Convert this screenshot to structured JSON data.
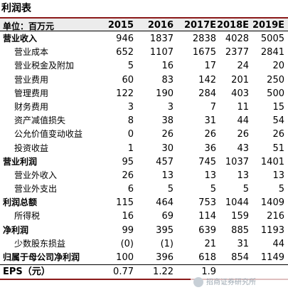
{
  "title": "利润表",
  "header": {
    "unit_label": "单位：百万元",
    "columns": [
      "2015",
      "2016",
      "2017E",
      "2018E",
      "2019E"
    ]
  },
  "rows": [
    {
      "label": "营业收入",
      "values": [
        "946",
        "1837",
        "2838",
        "4028",
        "5005"
      ],
      "style": "bold"
    },
    {
      "label": "营业成本",
      "values": [
        "652",
        "1107",
        "1675",
        "2377",
        "2841"
      ],
      "style": "indent"
    },
    {
      "label": "营业税金及附加",
      "values": [
        "5",
        "16",
        "17",
        "24",
        "20"
      ],
      "style": "indent"
    },
    {
      "label": "营业费用",
      "values": [
        "60",
        "83",
        "142",
        "201",
        "250"
      ],
      "style": "indent"
    },
    {
      "label": "管理费用",
      "values": [
        "122",
        "190",
        "284",
        "403",
        "500"
      ],
      "style": "indent"
    },
    {
      "label": "财务费用",
      "values": [
        "3",
        "3",
        "7",
        "11",
        "15"
      ],
      "style": "indent"
    },
    {
      "label": "资产减值损失",
      "values": [
        "8",
        "38",
        "31",
        "44",
        "54"
      ],
      "style": "indent"
    },
    {
      "label": "公允价值变动收益",
      "values": [
        "0",
        "26",
        "26",
        "26",
        "26"
      ],
      "style": "indent"
    },
    {
      "label": "投资收益",
      "values": [
        "1",
        "30",
        "36",
        "43",
        "51"
      ],
      "style": "indent"
    },
    {
      "label": "营业利润",
      "values": [
        "95",
        "457",
        "745",
        "1037",
        "1401"
      ],
      "style": "bold"
    },
    {
      "label": "营业外收入",
      "values": [
        "26",
        "13",
        "13",
        "13",
        "13"
      ],
      "style": "indent"
    },
    {
      "label": "营业外支出",
      "values": [
        "6",
        "5",
        "5",
        "5",
        "5"
      ],
      "style": "indent"
    },
    {
      "label": "利润总额",
      "values": [
        "115",
        "464",
        "753",
        "1044",
        "1409"
      ],
      "style": "bold"
    },
    {
      "label": "所得税",
      "values": [
        "16",
        "69",
        "114",
        "159",
        "216"
      ],
      "style": "indent"
    },
    {
      "label": "净利润",
      "values": [
        "99",
        "395",
        "639",
        "885",
        "1193"
      ],
      "style": "bold"
    },
    {
      "label": "少数股东损益",
      "values": [
        "(0)",
        "(1)",
        "21",
        "31",
        "44"
      ],
      "style": "indent"
    },
    {
      "label": "归属于母公司净利润",
      "values": [
        "100",
        "396",
        "618",
        "854",
        "1149"
      ],
      "style": "bold"
    }
  ],
  "eps": {
    "label": "EPS（元）",
    "values": [
      "0.77",
      "1.22",
      "1.9",
      "",
      ""
    ]
  },
  "watermark": "招商证券研究所"
}
